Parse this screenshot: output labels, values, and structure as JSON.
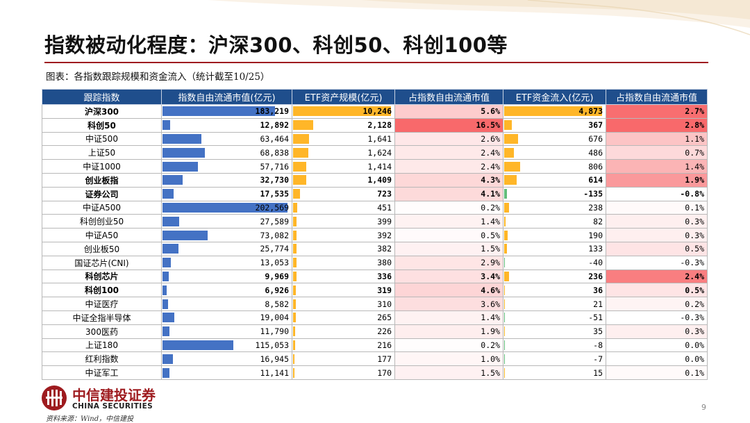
{
  "title": "指数被动化程度：沪深300、科创50、科创100等",
  "subtitle": "图表：各指数跟踪规模和资金流入（统计截至10/25）",
  "table": {
    "headers": [
      "跟踪指数",
      "指数自由流通市值(亿元)",
      "ETF资产规模(亿元)",
      "占指数自由流通市值",
      "ETF资金流入(亿元)",
      "占指数自由流通市值"
    ],
    "rows": [
      {
        "name": "沪深300",
        "bold": true,
        "mcap": "183,219",
        "mcap_v": 183219,
        "etf": "10,246",
        "etf_v": 10246,
        "pct1": "5.6%",
        "pct1_v": 5.6,
        "flow": "4,873",
        "flow_v": 4873,
        "pct2": "2.7%",
        "pct2_v": 2.7
      },
      {
        "name": "科创50",
        "bold": true,
        "mcap": "12,892",
        "mcap_v": 12892,
        "etf": "2,128",
        "etf_v": 2128,
        "pct1": "16.5%",
        "pct1_v": 16.5,
        "flow": "367",
        "flow_v": 367,
        "pct2": "2.8%",
        "pct2_v": 2.8
      },
      {
        "name": "中证500",
        "bold": false,
        "mcap": "63,464",
        "mcap_v": 63464,
        "etf": "1,641",
        "etf_v": 1641,
        "pct1": "2.6%",
        "pct1_v": 2.6,
        "flow": "676",
        "flow_v": 676,
        "pct2": "1.1%",
        "pct2_v": 1.1
      },
      {
        "name": "上证50",
        "bold": false,
        "mcap": "68,838",
        "mcap_v": 68838,
        "etf": "1,624",
        "etf_v": 1624,
        "pct1": "2.4%",
        "pct1_v": 2.4,
        "flow": "486",
        "flow_v": 486,
        "pct2": "0.7%",
        "pct2_v": 0.7
      },
      {
        "name": "中证1000",
        "bold": false,
        "mcap": "57,716",
        "mcap_v": 57716,
        "etf": "1,414",
        "etf_v": 1414,
        "pct1": "2.4%",
        "pct1_v": 2.4,
        "flow": "806",
        "flow_v": 806,
        "pct2": "1.4%",
        "pct2_v": 1.4
      },
      {
        "name": "创业板指",
        "bold": true,
        "mcap": "32,730",
        "mcap_v": 32730,
        "etf": "1,409",
        "etf_v": 1409,
        "pct1": "4.3%",
        "pct1_v": 4.3,
        "flow": "614",
        "flow_v": 614,
        "pct2": "1.9%",
        "pct2_v": 1.9
      },
      {
        "name": "证券公司",
        "bold": true,
        "mcap": "17,535",
        "mcap_v": 17535,
        "etf": "723",
        "etf_v": 723,
        "pct1": "4.1%",
        "pct1_v": 4.1,
        "flow": "-135",
        "flow_v": -135,
        "pct2": "-0.8%",
        "pct2_v": -0.8
      },
      {
        "name": "中证A500",
        "bold": false,
        "mcap": "202,569",
        "mcap_v": 202569,
        "etf": "451",
        "etf_v": 451,
        "pct1": "0.2%",
        "pct1_v": 0.2,
        "flow": "238",
        "flow_v": 238,
        "pct2": "0.1%",
        "pct2_v": 0.1
      },
      {
        "name": "科创创业50",
        "bold": false,
        "mcap": "27,589",
        "mcap_v": 27589,
        "etf": "399",
        "etf_v": 399,
        "pct1": "1.4%",
        "pct1_v": 1.4,
        "flow": "82",
        "flow_v": 82,
        "pct2": "0.3%",
        "pct2_v": 0.3
      },
      {
        "name": "中证A50",
        "bold": false,
        "mcap": "73,082",
        "mcap_v": 73082,
        "etf": "392",
        "etf_v": 392,
        "pct1": "0.5%",
        "pct1_v": 0.5,
        "flow": "190",
        "flow_v": 190,
        "pct2": "0.3%",
        "pct2_v": 0.3
      },
      {
        "name": "创业板50",
        "bold": false,
        "mcap": "25,774",
        "mcap_v": 25774,
        "etf": "382",
        "etf_v": 382,
        "pct1": "1.5%",
        "pct1_v": 1.5,
        "flow": "133",
        "flow_v": 133,
        "pct2": "0.5%",
        "pct2_v": 0.5
      },
      {
        "name": "国证芯片(CNI)",
        "bold": false,
        "mcap": "13,053",
        "mcap_v": 13053,
        "etf": "380",
        "etf_v": 380,
        "pct1": "2.9%",
        "pct1_v": 2.9,
        "flow": "-40",
        "flow_v": -40,
        "pct2": "-0.3%",
        "pct2_v": -0.3
      },
      {
        "name": "科创芯片",
        "bold": true,
        "mcap": "9,969",
        "mcap_v": 9969,
        "etf": "336",
        "etf_v": 336,
        "pct1": "3.4%",
        "pct1_v": 3.4,
        "flow": "236",
        "flow_v": 236,
        "pct2": "2.4%",
        "pct2_v": 2.4
      },
      {
        "name": "科创100",
        "bold": true,
        "mcap": "6,926",
        "mcap_v": 6926,
        "etf": "319",
        "etf_v": 319,
        "pct1": "4.6%",
        "pct1_v": 4.6,
        "flow": "36",
        "flow_v": 36,
        "pct2": "0.5%",
        "pct2_v": 0.5
      },
      {
        "name": "中证医疗",
        "bold": false,
        "mcap": "8,582",
        "mcap_v": 8582,
        "etf": "310",
        "etf_v": 310,
        "pct1": "3.6%",
        "pct1_v": 3.6,
        "flow": "21",
        "flow_v": 21,
        "pct2": "0.2%",
        "pct2_v": 0.2
      },
      {
        "name": "中证全指半导体",
        "bold": false,
        "mcap": "19,004",
        "mcap_v": 19004,
        "etf": "265",
        "etf_v": 265,
        "pct1": "1.4%",
        "pct1_v": 1.4,
        "flow": "-51",
        "flow_v": -51,
        "pct2": "-0.3%",
        "pct2_v": -0.3
      },
      {
        "name": "300医药",
        "bold": false,
        "mcap": "11,790",
        "mcap_v": 11790,
        "etf": "226",
        "etf_v": 226,
        "pct1": "1.9%",
        "pct1_v": 1.9,
        "flow": "35",
        "flow_v": 35,
        "pct2": "0.3%",
        "pct2_v": 0.3
      },
      {
        "name": "上证180",
        "bold": false,
        "mcap": "115,053",
        "mcap_v": 115053,
        "etf": "216",
        "etf_v": 216,
        "pct1": "0.2%",
        "pct1_v": 0.2,
        "flow": "-8",
        "flow_v": -8,
        "pct2": "0.0%",
        "pct2_v": 0.0
      },
      {
        "name": "红利指数",
        "bold": false,
        "mcap": "16,945",
        "mcap_v": 16945,
        "etf": "177",
        "etf_v": 177,
        "pct1": "1.0%",
        "pct1_v": 1.0,
        "flow": "-7",
        "flow_v": -7,
        "pct2": "0.0%",
        "pct2_v": 0.0
      },
      {
        "name": "中证军工",
        "bold": false,
        "mcap": "11,141",
        "mcap_v": 11141,
        "etf": "170",
        "etf_v": 170,
        "pct1": "1.5%",
        "pct1_v": 1.5,
        "flow": "15",
        "flow_v": 15,
        "pct2": "0.1%",
        "pct2_v": 0.1
      }
    ]
  },
  "colors": {
    "header_bg": "#1f4e8c",
    "accent_red": "#9e1b1f",
    "bar_blue": "#4472c4",
    "bar_orange": "#ffb628",
    "bar_green": "#63be7b",
    "heat_red": "#f8696b"
  },
  "logo": {
    "cn": "中信建投证券",
    "en": "CHINA SECURITIES"
  },
  "source": "资料来源：Wind，中信建投",
  "page_number": "9"
}
